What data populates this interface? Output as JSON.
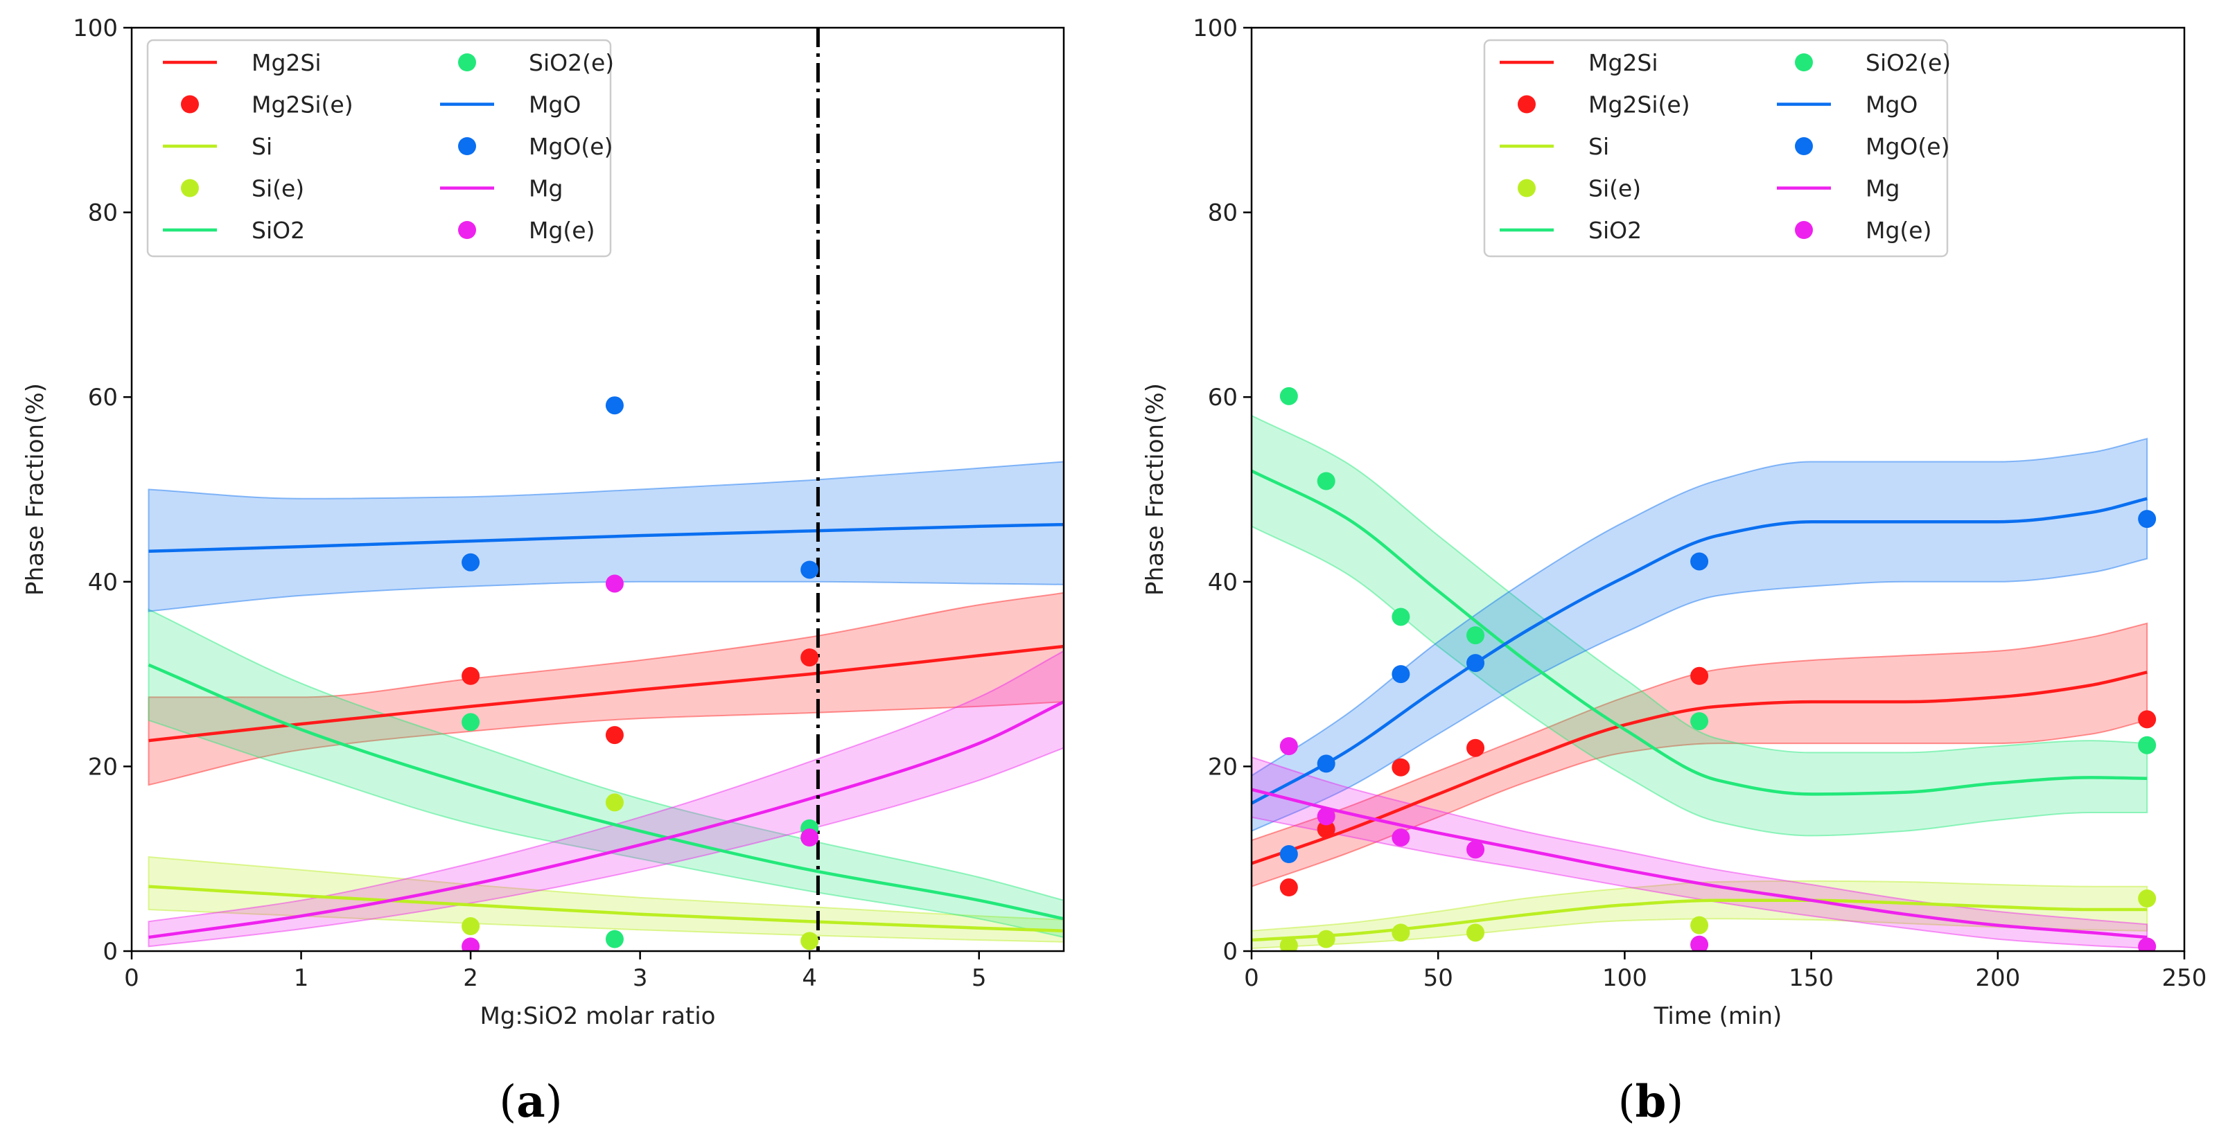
{
  "chart_data": [
    {
      "type": "line",
      "panel": "a",
      "caption": "(a)",
      "caption_open": "(",
      "caption_letter": "a",
      "caption_close": ")",
      "title": "",
      "xlabel": "Mg:SiO2 molar ratio",
      "ylabel": "Phase Fraction(%)",
      "xlim": [
        0,
        5.5
      ],
      "ylim": [
        0,
        100
      ],
      "xticks": [
        0,
        1,
        2,
        3,
        4,
        5
      ],
      "xtick_labels": [
        "0",
        "1",
        "2",
        "3",
        "4",
        "5"
      ],
      "yticks": [
        0,
        20,
        40,
        60,
        80,
        100
      ],
      "ytick_labels": [
        "0",
        "20",
        "40",
        "60",
        "80",
        "100"
      ],
      "vline": {
        "x": 4.05,
        "style": "dash-dot"
      },
      "legend": {
        "position": "top-left",
        "entries": [
          "Mg2Si",
          "Mg2Si(e)",
          "Si",
          "Si(e)",
          "SiO2",
          "SiO2(e)",
          "MgO",
          "MgO(e)",
          "Mg",
          "Mg(e)"
        ]
      },
      "series": [
        {
          "name": "Mg2Si",
          "kind": "line",
          "color": "#ff1a1a",
          "x": [
            0.1,
            1,
            2,
            3,
            4,
            5,
            5.5
          ],
          "y": [
            22.8,
            24.6,
            26.5,
            28.3,
            30.0,
            32.0,
            33.0
          ],
          "lower": [
            18.0,
            21.8,
            23.8,
            25.2,
            25.8,
            26.5,
            27.0
          ],
          "upper": [
            27.5,
            27.5,
            29.5,
            31.5,
            34.0,
            37.5,
            38.8
          ]
        },
        {
          "name": "Mg2Si(e)",
          "kind": "points",
          "color": "#ff1a1a",
          "x": [
            2,
            2.85,
            4
          ],
          "y": [
            29.8,
            23.4,
            31.8
          ]
        },
        {
          "name": "Si",
          "kind": "line",
          "color": "#bbee22",
          "x": [
            0.1,
            1,
            2,
            3,
            4,
            5,
            5.5
          ],
          "y": [
            7.0,
            6.0,
            5.0,
            4.0,
            3.2,
            2.5,
            2.2
          ],
          "lower": [
            4.5,
            3.8,
            3.0,
            2.3,
            1.7,
            1.2,
            1.0
          ],
          "upper": [
            10.2,
            8.8,
            7.2,
            5.8,
            4.8,
            3.8,
            3.4
          ]
        },
        {
          "name": "Si(e)",
          "kind": "points",
          "color": "#bbee22",
          "x": [
            2,
            2.85,
            4
          ],
          "y": [
            2.7,
            16.1,
            1.1
          ]
        },
        {
          "name": "SiO2",
          "kind": "line",
          "color": "#22e87a",
          "x": [
            0.1,
            1,
            2,
            3,
            4,
            5,
            5.5
          ],
          "y": [
            31.0,
            24.0,
            18.0,
            13.0,
            8.8,
            5.5,
            3.5
          ],
          "lower": [
            25.0,
            19.5,
            13.8,
            10.0,
            6.5,
            3.5,
            1.5
          ],
          "upper": [
            37.0,
            29.0,
            22.5,
            16.5,
            12.0,
            8.0,
            5.5
          ]
        },
        {
          "name": "SiO2(e)",
          "kind": "points",
          "color": "#22e87a",
          "x": [
            2,
            2.85,
            4
          ],
          "y": [
            24.8,
            1.3,
            13.3
          ]
        },
        {
          "name": "MgO",
          "kind": "line",
          "color": "#0a6ff0",
          "x": [
            0.1,
            1,
            2,
            3,
            4,
            5,
            5.5
          ],
          "y": [
            43.3,
            43.8,
            44.4,
            45.0,
            45.5,
            46.0,
            46.2
          ],
          "lower": [
            36.8,
            38.5,
            39.5,
            40.0,
            40.0,
            39.8,
            39.7
          ],
          "upper": [
            50.0,
            49.0,
            49.2,
            50.0,
            51.0,
            52.3,
            53.0
          ]
        },
        {
          "name": "MgO(e)",
          "kind": "points",
          "color": "#0a6ff0",
          "x": [
            2,
            2.85,
            4
          ],
          "y": [
            42.1,
            59.1,
            41.3
          ]
        },
        {
          "name": "Mg",
          "kind": "line",
          "color": "#ee22ee",
          "x": [
            0.1,
            1,
            2,
            3,
            4,
            5,
            5.5
          ],
          "y": [
            1.5,
            3.8,
            7.2,
            11.5,
            16.5,
            22.5,
            27.0
          ],
          "lower": [
            0.5,
            2.4,
            5.2,
            8.8,
            13.2,
            18.5,
            22.0
          ],
          "upper": [
            3.2,
            5.5,
            9.5,
            14.5,
            20.5,
            27.5,
            32.5
          ]
        },
        {
          "name": "Mg(e)",
          "kind": "points",
          "color": "#ee22ee",
          "x": [
            2,
            2.85,
            4
          ],
          "y": [
            0.5,
            39.8,
            12.3
          ]
        }
      ]
    },
    {
      "type": "line",
      "panel": "b",
      "caption": "(b)",
      "caption_open": "(",
      "caption_letter": "b",
      "caption_close": ")",
      "title": "",
      "xlabel": "Time (min)",
      "ylabel": "Phase Fraction(%)",
      "xlim": [
        0,
        250
      ],
      "ylim": [
        0,
        100
      ],
      "xticks": [
        0,
        50,
        100,
        150,
        200,
        250
      ],
      "xtick_labels": [
        "0",
        "50",
        "100",
        "150",
        "200",
        "250"
      ],
      "yticks": [
        0,
        20,
        40,
        60,
        80,
        100
      ],
      "ytick_labels": [
        "0",
        "20",
        "40",
        "60",
        "80",
        "100"
      ],
      "legend": {
        "position": "top-center",
        "entries": [
          "Mg2Si",
          "Mg2Si(e)",
          "Si",
          "Si(e)",
          "SiO2",
          "SiO2(e)",
          "MgO",
          "MgO(e)",
          "Mg",
          "Mg(e)"
        ]
      },
      "series": [
        {
          "name": "Mg2Si",
          "kind": "line",
          "color": "#ff1a1a",
          "x": [
            0,
            25,
            50,
            75,
            100,
            125,
            150,
            175,
            200,
            225,
            240
          ],
          "y": [
            9.5,
            13.0,
            17.0,
            21.0,
            24.5,
            26.5,
            27.0,
            27.0,
            27.5,
            28.8,
            30.2
          ],
          "lower": [
            7.0,
            10.5,
            14.5,
            18.5,
            21.5,
            22.5,
            22.5,
            22.5,
            22.5,
            23.5,
            25.0
          ],
          "upper": [
            12.0,
            15.5,
            19.5,
            23.5,
            27.5,
            30.5,
            31.5,
            32.0,
            32.5,
            34.0,
            35.5
          ]
        },
        {
          "name": "Mg2Si(e)",
          "kind": "points",
          "color": "#ff1a1a",
          "x": [
            10,
            20,
            40,
            60,
            120,
            240
          ],
          "y": [
            6.9,
            13.2,
            19.9,
            22.0,
            29.8,
            25.1
          ]
        },
        {
          "name": "Si",
          "kind": "line",
          "color": "#bbee22",
          "x": [
            0,
            25,
            50,
            75,
            100,
            125,
            150,
            175,
            200,
            225,
            240
          ],
          "y": [
            1.2,
            1.8,
            2.8,
            4.0,
            5.0,
            5.5,
            5.5,
            5.2,
            4.8,
            4.5,
            4.5
          ],
          "lower": [
            0.3,
            0.8,
            1.5,
            2.5,
            3.3,
            3.5,
            3.4,
            3.0,
            2.6,
            2.3,
            2.2
          ],
          "upper": [
            2.2,
            3.0,
            4.3,
            5.8,
            6.8,
            7.5,
            7.6,
            7.5,
            7.2,
            7.0,
            7.0
          ]
        },
        {
          "name": "Si(e)",
          "kind": "points",
          "color": "#bbee22",
          "x": [
            10,
            20,
            40,
            60,
            120,
            240
          ],
          "y": [
            0.6,
            1.3,
            2.0,
            2.0,
            2.8,
            5.7
          ]
        },
        {
          "name": "SiO2",
          "kind": "line",
          "color": "#22e87a",
          "x": [
            0,
            25,
            50,
            75,
            100,
            125,
            150,
            175,
            200,
            225,
            240
          ],
          "y": [
            52.0,
            47.0,
            39.0,
            31.0,
            24.0,
            18.5,
            17.0,
            17.2,
            18.2,
            18.8,
            18.7
          ],
          "lower": [
            46.0,
            41.0,
            33.0,
            25.5,
            19.0,
            14.0,
            12.5,
            13.0,
            14.2,
            15.0,
            15.0
          ],
          "upper": [
            58.0,
            53.0,
            45.0,
            37.0,
            29.5,
            23.0,
            21.5,
            21.5,
            22.2,
            22.8,
            22.5
          ]
        },
        {
          "name": "SiO2(e)",
          "kind": "points",
          "color": "#22e87a",
          "x": [
            10,
            20,
            40,
            60,
            120,
            240
          ],
          "y": [
            60.1,
            50.9,
            36.2,
            34.2,
            24.9,
            22.3
          ]
        },
        {
          "name": "MgO",
          "kind": "line",
          "color": "#0a6ff0",
          "x": [
            0,
            25,
            50,
            75,
            100,
            125,
            150,
            175,
            200,
            225,
            240
          ],
          "y": [
            16.0,
            21.5,
            28.5,
            35.0,
            40.5,
            45.0,
            46.5,
            46.5,
            46.5,
            47.5,
            49.0
          ],
          "lower": [
            13.0,
            17.5,
            23.5,
            29.5,
            34.5,
            38.5,
            39.5,
            40.0,
            40.0,
            41.0,
            42.5
          ],
          "upper": [
            19.0,
            25.5,
            33.5,
            40.5,
            46.5,
            51.0,
            53.0,
            53.0,
            53.0,
            54.0,
            55.5
          ]
        },
        {
          "name": "MgO(e)",
          "kind": "points",
          "color": "#0a6ff0",
          "x": [
            10,
            20,
            40,
            60,
            120,
            240
          ],
          "y": [
            10.5,
            20.3,
            30.0,
            31.2,
            42.2,
            46.8
          ]
        },
        {
          "name": "Mg",
          "kind": "line",
          "color": "#ee22ee",
          "x": [
            0,
            25,
            50,
            75,
            100,
            125,
            150,
            175,
            200,
            225,
            240
          ],
          "y": [
            17.5,
            15.0,
            12.8,
            10.8,
            8.8,
            7.0,
            5.5,
            4.0,
            2.8,
            2.0,
            1.5
          ],
          "lower": [
            14.5,
            12.5,
            10.5,
            8.8,
            7.0,
            5.3,
            3.8,
            2.5,
            1.3,
            0.6,
            0.3
          ],
          "upper": [
            21.0,
            17.8,
            15.2,
            12.8,
            10.8,
            8.8,
            7.2,
            5.6,
            4.3,
            3.4,
            2.9
          ]
        },
        {
          "name": "Mg(e)",
          "kind": "points",
          "color": "#ee22ee",
          "x": [
            10,
            20,
            40,
            60,
            120,
            240
          ],
          "y": [
            22.2,
            14.6,
            12.3,
            11.0,
            0.7,
            0.5
          ]
        }
      ]
    }
  ]
}
